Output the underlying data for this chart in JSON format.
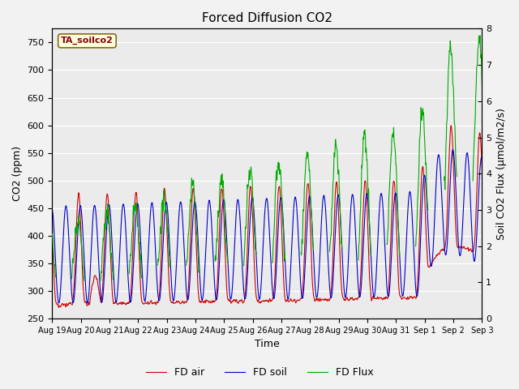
{
  "title": "Forced Diffusion CO2",
  "xlabel": "Time",
  "ylabel_left": "CO2 (ppm)",
  "ylabel_right": "Soil CO2 Flux (μmol/m2/s)",
  "annotation": "TA_soilco2",
  "ylim_left": [
    250,
    775
  ],
  "ylim_right": [
    0.0,
    8.0
  ],
  "yticks_left": [
    250,
    300,
    350,
    400,
    450,
    500,
    550,
    600,
    650,
    700,
    750
  ],
  "yticks_right": [
    0.0,
    1.0,
    2.0,
    3.0,
    4.0,
    5.0,
    6.0,
    7.0,
    8.0
  ],
  "xtick_labels": [
    "Aug 19",
    "Aug 20",
    "Aug 21",
    "Aug 22",
    "Aug 23",
    "Aug 24",
    "Aug 25",
    "Aug 26",
    "Aug 27",
    "Aug 28",
    "Aug 29",
    "Aug 30",
    "Aug 31",
    "Sep 1",
    "Sep 2",
    "Sep 3"
  ],
  "legend_labels": [
    "FD air",
    "FD soil",
    "FD Flux"
  ],
  "line_colors": [
    "#cc0000",
    "#0000cc",
    "#00aa00"
  ],
  "background_color": "#ebebeb",
  "grid_color": "#ffffff",
  "title_fontsize": 11,
  "label_fontsize": 9,
  "tick_fontsize": 8,
  "n_days": 15,
  "samples_per_day": 144
}
